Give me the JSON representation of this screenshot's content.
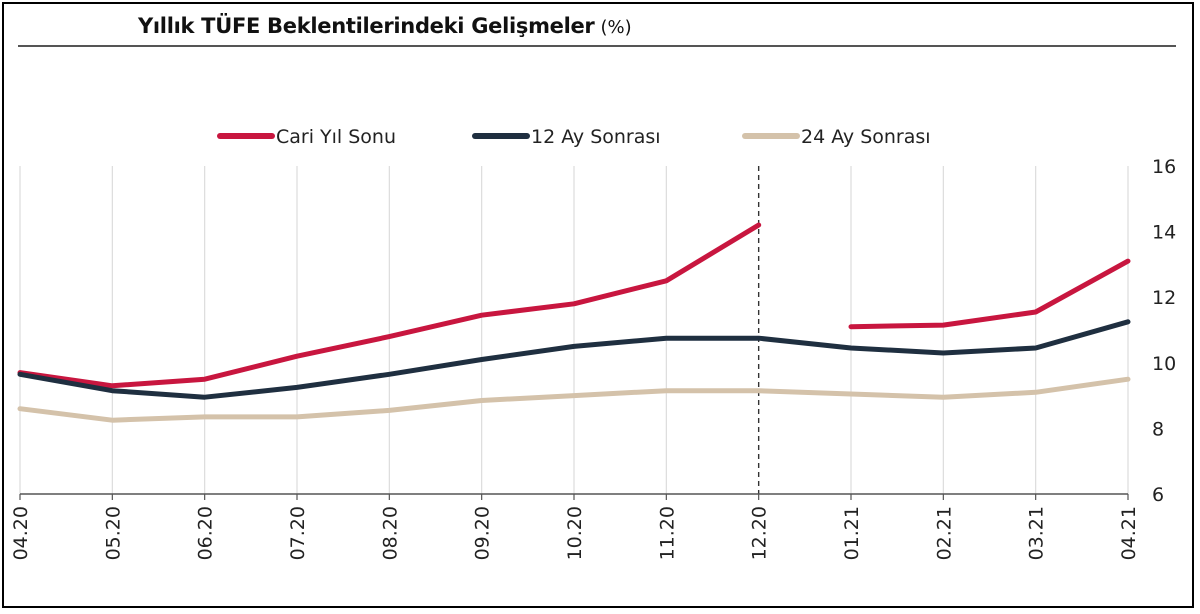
{
  "title": "Yıllık TÜFE Beklentilerindeki Gelişmeler",
  "unit": "(%)",
  "chart_data": {
    "type": "line",
    "x": [
      "04.20",
      "05.20",
      "06.20",
      "07.20",
      "08.20",
      "09.20",
      "10.20",
      "11.20",
      "12.20",
      "01.21",
      "02.21",
      "03.21",
      "04.21"
    ],
    "ylim": [
      6,
      16
    ],
    "yticks": [
      6,
      8,
      10,
      12,
      14,
      16
    ],
    "grid": "vertical",
    "legend_position": "top",
    "series": [
      {
        "name": "Cari Yıl Sonu",
        "color": "#c8163f",
        "values": [
          9.7,
          9.3,
          9.5,
          10.2,
          10.8,
          11.45,
          11.8,
          12.5,
          14.2,
          11.1,
          11.15,
          11.55,
          13.1
        ]
      },
      {
        "name": "12 Ay Sonrası",
        "color": "#1f2f40",
        "values": [
          9.65,
          9.15,
          8.95,
          9.25,
          9.65,
          10.1,
          10.5,
          10.75,
          10.75,
          10.45,
          10.3,
          10.45,
          11.25
        ]
      },
      {
        "name": "24 Ay Sonrası",
        "color": "#d4c2aa",
        "values": [
          8.6,
          8.25,
          8.35,
          8.35,
          8.55,
          8.85,
          9.0,
          9.15,
          9.15,
          9.05,
          8.95,
          9.1,
          9.5
        ]
      }
    ],
    "segments": {
      "Cari Yıl Sonu": [
        [
          0,
          8
        ],
        [
          9,
          12
        ]
      ]
    },
    "vline_category": "12.20"
  }
}
